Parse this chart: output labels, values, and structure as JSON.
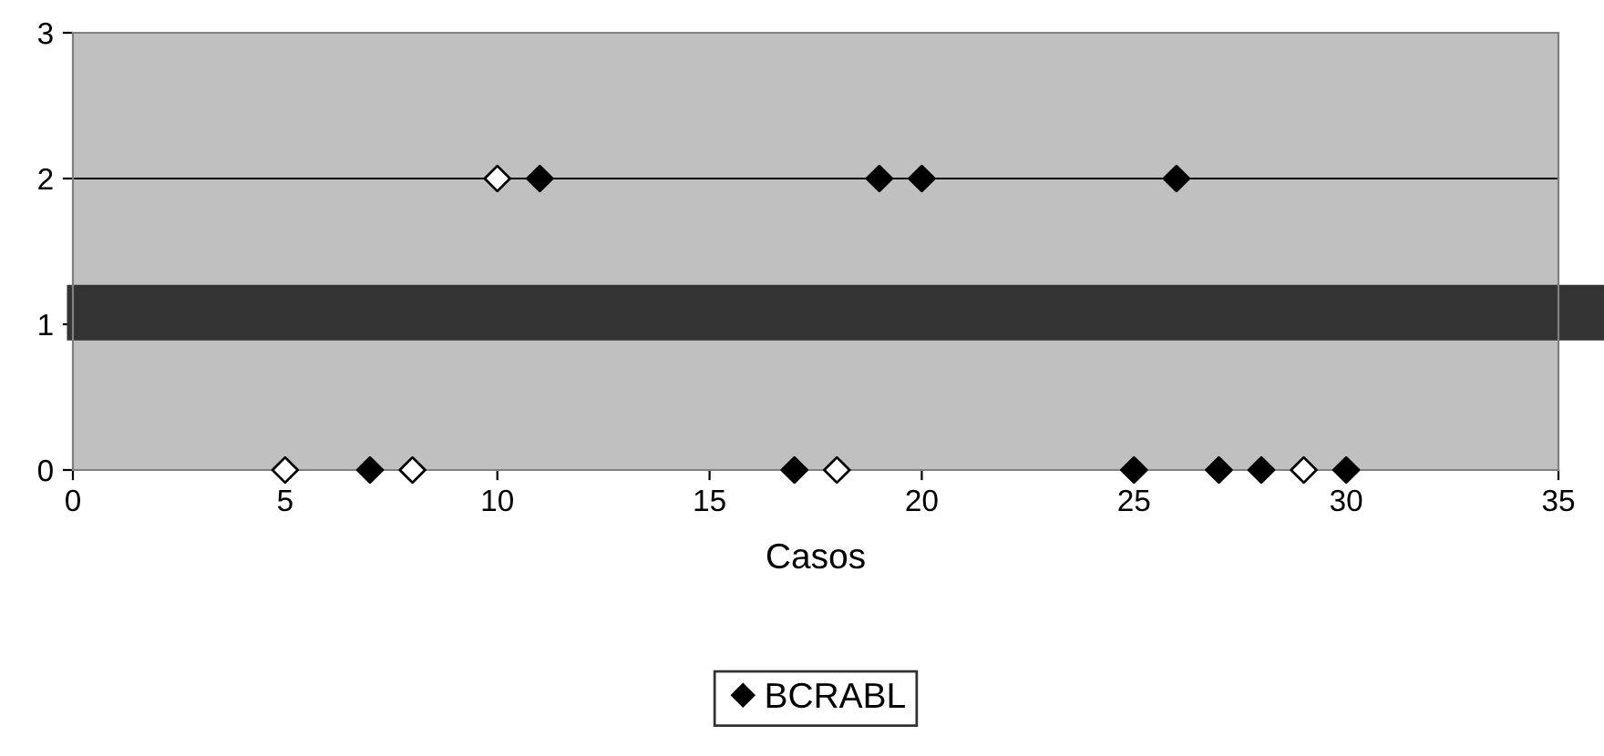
{
  "chart_data": {
    "type": "scatter",
    "xlabel": "Casos",
    "xlim": [
      0,
      35
    ],
    "ylim": [
      0,
      3
    ],
    "xticks": [
      0,
      5,
      10,
      15,
      20,
      25,
      30,
      35
    ],
    "yticks": [
      0,
      1,
      2,
      3
    ],
    "grid": "y",
    "marker": "diamond",
    "legend": "bottom",
    "series": [
      {
        "name": "BCRABL",
        "color": "#000000",
        "x": [
          11,
          19,
          20,
          26,
          7,
          17,
          25,
          27,
          28,
          30
        ],
        "values": [
          2,
          2,
          2,
          2,
          0,
          0,
          0,
          0,
          0,
          0
        ]
      },
      {
        "color": "#ffffff",
        "x": [
          10,
          5,
          8,
          18,
          29
        ],
        "values": [
          2,
          0,
          0,
          0,
          0
        ]
      }
    ],
    "ref_lines": [
      {
        "axis": "y",
        "value": 1.08,
        "color": "#333333"
      }
    ]
  }
}
